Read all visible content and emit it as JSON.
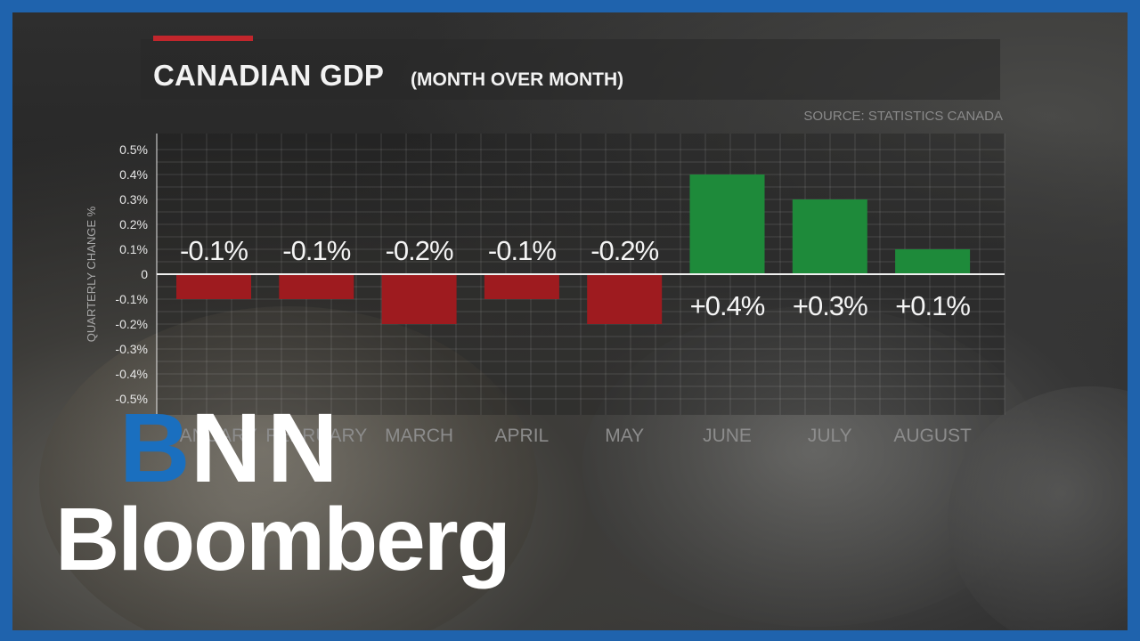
{
  "header": {
    "title": "CANADIAN GDP",
    "subtitle": "(MONTH OVER MONTH)",
    "source": "SOURCE: STATISTICS CANADA"
  },
  "colors": {
    "accent": "#c2262c",
    "negative": "#9e1b1f",
    "positive": "#1e8a3a",
    "frame": "#1f63ad",
    "logo_blue": "#1a6fbf"
  },
  "chart_data": {
    "type": "bar",
    "title": "CANADIAN GDP",
    "subtitle": "(MONTH OVER MONTH)",
    "ylabel": "QUARTERLY CHANGE %",
    "xlabel": "",
    "ylim": [
      -0.5,
      0.5
    ],
    "yticks": [
      "0.5%",
      "0.4%",
      "0.3%",
      "0.2%",
      "0.1%",
      "0",
      "-0.1%",
      "-0.2%",
      "-0.3%",
      "-0.4%",
      "-0.5%"
    ],
    "categories": [
      "JANUARY",
      "FEBRUARY",
      "MARCH",
      "APRIL",
      "MAY",
      "JUNE",
      "JULY",
      "AUGUST"
    ],
    "values": [
      -0.1,
      -0.1,
      -0.2,
      -0.1,
      -0.2,
      0.4,
      0.3,
      0.1
    ],
    "data_labels": [
      "-0.1%",
      "-0.1%",
      "-0.2%",
      "-0.1%",
      "-0.2%",
      "+0.4%",
      "+0.3%",
      "+0.1%"
    ],
    "grid": true
  },
  "branding": {
    "bnn_b": "B",
    "bnn_n1": "N",
    "bnn_n2": "N",
    "bloomberg": "Bloomberg"
  }
}
